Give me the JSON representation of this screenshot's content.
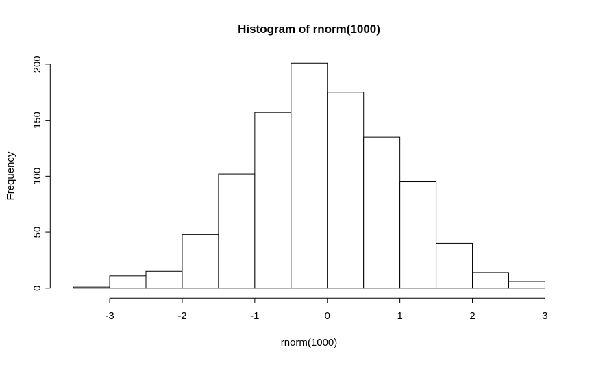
{
  "chart_data": {
    "type": "bar",
    "subtype": "histogram",
    "title": "Histogram of rnorm(1000)",
    "xlabel": "rnorm(1000)",
    "ylabel": "Frequency",
    "bin_breaks": [
      -3.5,
      -3.0,
      -2.5,
      -2.0,
      -1.5,
      -1.0,
      -0.5,
      0.0,
      0.5,
      1.0,
      1.5,
      2.0,
      2.5,
      3.0
    ],
    "counts": [
      1,
      11,
      15,
      48,
      102,
      157,
      201,
      175,
      135,
      95,
      40,
      14,
      6
    ],
    "total_n": 1000,
    "x_ticks": [
      -3,
      -2,
      -1,
      0,
      1,
      2,
      3
    ],
    "y_ticks": [
      0,
      50,
      100,
      150,
      200
    ],
    "xlim": [
      -3.5,
      3.0
    ],
    "ylim": [
      0,
      200
    ],
    "grid": false,
    "legend": false,
    "bar_fill": "#ffffff",
    "bar_stroke": "#000000",
    "axis_color": "#000000",
    "background": "#ffffff"
  }
}
